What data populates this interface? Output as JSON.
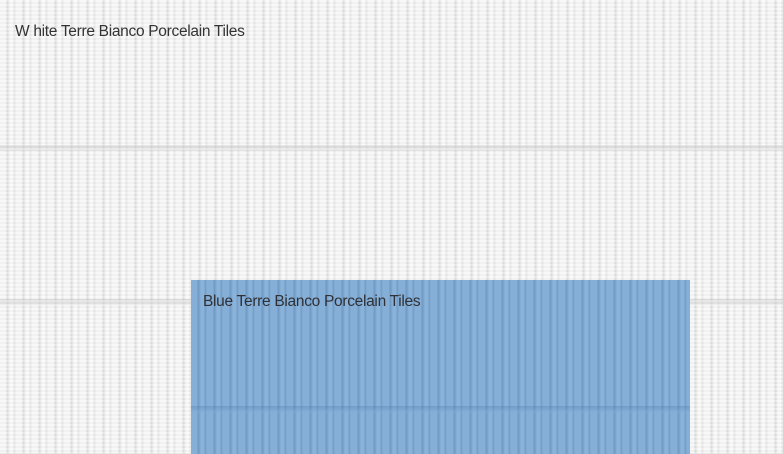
{
  "tiles": {
    "white": {
      "label": "W hite Terre Bianco Porcelain Tiles",
      "color": "#f1f1f1"
    },
    "blue": {
      "label": "Blue Terre Bianco Porcelain Tiles",
      "color": "#7fa9d3"
    }
  }
}
